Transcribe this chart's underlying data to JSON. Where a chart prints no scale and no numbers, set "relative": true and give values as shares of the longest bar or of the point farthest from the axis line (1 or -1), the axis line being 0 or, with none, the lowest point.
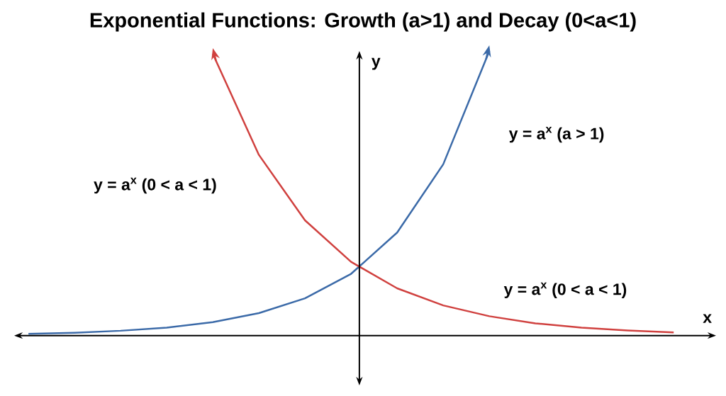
{
  "chart_data": {
    "type": "line",
    "title": "Exponential Functions: Growth (a>1) and Decay (0<a<1)",
    "xlabel": "x",
    "ylabel": "y",
    "relative": true,
    "categories": [
      null,
      null,
      null,
      null,
      null,
      null,
      null,
      null,
      null,
      null,
      null,
      null,
      null,
      null,
      null
    ],
    "series": [
      {
        "name": "y = a$^{x}$ (a > 1)",
        "color": "#3b6aa8",
        "values": [
          0.006,
          0.01,
          0.017,
          0.028,
          0.047,
          0.079,
          0.131,
          0.217,
          0.362,
          0.602,
          1.0,
          null,
          null,
          null,
          null
        ]
      },
      {
        "name": "y = a$^{x}$ (0 < a < 1)",
        "color": "#d0413f",
        "values": [
          null,
          null,
          null,
          null,
          0.99,
          0.635,
          0.405,
          0.259,
          0.166,
          0.106,
          0.068,
          0.043,
          0.028,
          0.018,
          0.011
        ]
      }
    ],
    "annotations": [
      "y = a$^{x}$ (0 < a < 1)"
    ]
  }
}
